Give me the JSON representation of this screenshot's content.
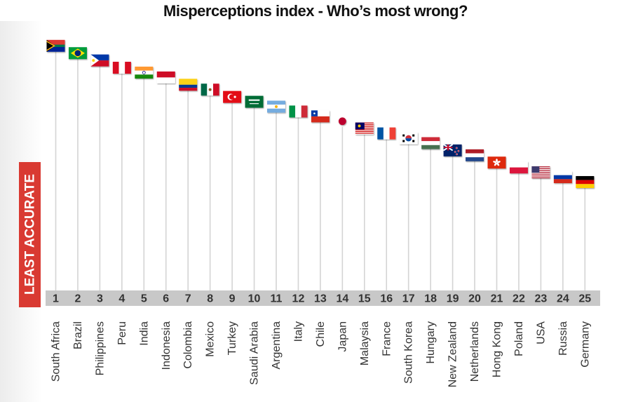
{
  "chart_data": {
    "type": "lollipop",
    "title": "Misperceptions index - Who’s most wrong?",
    "side_label": "LEAST ACCURATE",
    "x": [
      1,
      2,
      3,
      4,
      5,
      6,
      7,
      8,
      9,
      10,
      11,
      12,
      13,
      14,
      15,
      16,
      17,
      18,
      19,
      20,
      21,
      22,
      23,
      24,
      25
    ],
    "categories": [
      "South Africa",
      "Brazil",
      "Philippines",
      "Peru",
      "India",
      "Indonesia",
      "Colombia",
      "Mexico",
      "Turkey",
      "Saudi Arabia",
      "Argentina",
      "Italy",
      "Chile",
      "Japan",
      "Malaysia",
      "France",
      "South Korea",
      "Hungary",
      "New Zealand",
      "Netherlands",
      "Hong Kong",
      "Poland",
      "USA",
      "Russia",
      "Germany"
    ],
    "values": [
      100,
      97,
      94,
      91,
      89,
      87,
      84,
      82,
      79,
      77,
      75,
      73,
      71,
      69,
      66,
      64,
      62,
      60,
      57,
      55,
      52,
      50,
      48,
      46,
      44
    ],
    "ylim": [
      0,
      105
    ],
    "markers": [
      "flag-south-africa",
      "flag-brazil",
      "flag-philippines",
      "flag-peru",
      "flag-india",
      "flag-indonesia",
      "flag-colombia",
      "flag-mexico",
      "flag-turkey",
      "flag-saudi-arabia",
      "flag-argentina",
      "flag-italy",
      "flag-chile",
      "flag-japan",
      "flag-malaysia",
      "flag-france",
      "flag-south-korea",
      "flag-hungary",
      "flag-new-zealand",
      "flag-netherlands",
      "flag-hong-kong",
      "flag-poland",
      "flag-usa",
      "flag-russia",
      "flag-germany"
    ],
    "colors": {
      "axis_band": "#c8c8c8",
      "stem": "#d4d4d4",
      "side_label_bg": "#d93a32",
      "side_label_text": "#ffffff",
      "rank_text": "#333333",
      "category_text": "#333333"
    },
    "grid": false,
    "legend": "none"
  }
}
